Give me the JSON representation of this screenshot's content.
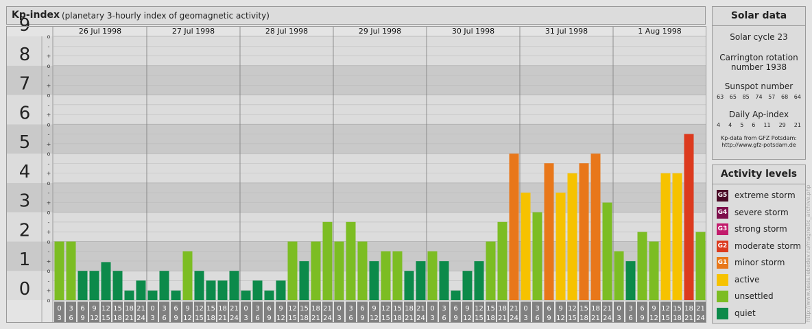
{
  "header": {
    "title": "Kp-index",
    "subtitle": "(planetary 3-hourly index of geomagnetic activity)"
  },
  "solar": {
    "title": "Solar data",
    "cycle": "Solar cycle 23",
    "carrington_line1": "Carrington rotation",
    "carrington_line2": "number 1938",
    "sunspot_label": "Sunspot number",
    "sunspot_values": [
      "63",
      "65",
      "85",
      "74",
      "57",
      "68",
      "64"
    ],
    "ap_label": "Daily Ap-index",
    "ap_values": [
      "4",
      "4",
      "5",
      "6",
      "11",
      "29",
      "21"
    ],
    "credit_line1": "Kp-data from GFZ Potsdam:",
    "credit_line2": "http://www.gfz-potsdam.de"
  },
  "levels": {
    "title": "Activity levels",
    "items": [
      {
        "badge": "G5",
        "label": "extreme storm",
        "color": "#4a0a26"
      },
      {
        "badge": "G4",
        "label": "severe storm",
        "color": "#7e0f4c"
      },
      {
        "badge": "G3",
        "label": "strong storm",
        "color": "#c21b6c"
      },
      {
        "badge": "G2",
        "label": "moderate storm",
        "color": "#dc3a1e"
      },
      {
        "badge": "G1",
        "label": "minor storm",
        "color": "#e8771a"
      },
      {
        "badge": "",
        "label": "active",
        "color": "#f6c200"
      },
      {
        "badge": "",
        "label": "unsettled",
        "color": "#7cbd23"
      },
      {
        "badge": "",
        "label": "quiet",
        "color": "#0c8a4a"
      }
    ]
  },
  "watermark": "http://www.tesis.lebedev.ru/magnetic_archive.php",
  "chart_data": {
    "type": "bar",
    "title": "Kp-index",
    "subtitle": "(planetary 3-hourly index of geomagnetic activity)",
    "ylim": [
      0,
      9
    ],
    "y_ticks": [
      "0",
      "1",
      "2",
      "3",
      "4",
      "5",
      "6",
      "7",
      "8",
      "9"
    ],
    "sub_ticks": [
      "+",
      "o",
      "-"
    ],
    "days": [
      "26 Jul 1998",
      "27 Jul 1998",
      "28 Jul 1998",
      "29 Jul 1998",
      "30 Jul 1998",
      "31 Jul 1998",
      "1 Aug 1998"
    ],
    "interval_start": [
      "0",
      "3",
      "6",
      "9",
      "12",
      "15",
      "18",
      "21"
    ],
    "interval_end": [
      "3",
      "6",
      "9",
      "12",
      "15",
      "18",
      "21",
      "24"
    ],
    "values": [
      2.0,
      2.0,
      1.0,
      1.0,
      1.3,
      1.0,
      0.33,
      0.67,
      0.33,
      1.0,
      0.33,
      1.67,
      1.0,
      0.67,
      0.67,
      1.0,
      0.33,
      0.67,
      0.33,
      0.67,
      2.0,
      1.33,
      2.0,
      2.67,
      2.0,
      2.67,
      2.0,
      1.33,
      1.67,
      1.67,
      1.0,
      1.33,
      1.67,
      1.33,
      0.33,
      1.0,
      1.33,
      2.0,
      2.67,
      5.0,
      3.67,
      3.0,
      4.67,
      3.67,
      4.33,
      4.67,
      5.0,
      3.33,
      1.67,
      1.33,
      2.33,
      2.0,
      4.33,
      4.33,
      5.67,
      2.33
    ],
    "colors": {
      "quiet": "#0c8a4a",
      "unsettled": "#7cbd23",
      "active": "#f6c200",
      "G1": "#e8771a",
      "G2": "#dc3a1e",
      "G3": "#c21b6c",
      "G4": "#7e0f4c",
      "G5": "#4a0a26"
    },
    "grid": true
  }
}
